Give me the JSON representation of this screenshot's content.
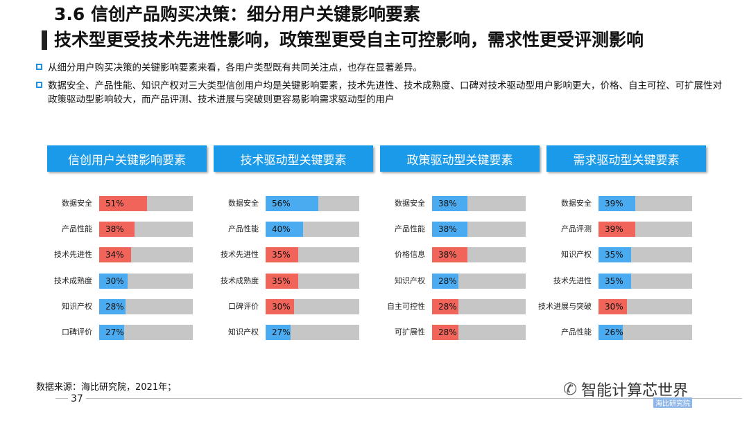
{
  "title": {
    "line1": "3.6 信创产品购买决策：细分用户关键影响要素",
    "line2": "技术型更受技术先进性影响，政策型更受自主可控影响，需求性更受评测影响"
  },
  "bullets": [
    "从细分用户购买决策的关键影响要素来看，各用户类型既有共同关注点，也存在显著差异。",
    "数据安全、产品性能、知识产权对三大类型信创用户均是关键影响要素，技术先进性、技术成熟度、口碑对技术驱动型用户影响更大，价格、自主可控、可扩展性对政策驱动型影响较大，而产品评测、技术进展与突破则更容易影响需求驱动型的用户"
  ],
  "colors": {
    "header": "#1a9ae8",
    "red": "#f0645a",
    "blue": "#4aabf0",
    "track": "#c6c6c6"
  },
  "chart_data": [
    {
      "type": "bar",
      "title": "信创用户关键影响要素",
      "categories": [
        "数据安全",
        "产品性能",
        "技术先进性",
        "技术成熟度",
        "知识产权",
        "口碑评价"
      ],
      "values": [
        51,
        38,
        34,
        30,
        28,
        27
      ],
      "labels": [
        "51%",
        "38%",
        "34%",
        "30%",
        "28%",
        "27%"
      ],
      "colors": [
        "red",
        "red",
        "red",
        "blue",
        "blue",
        "blue"
      ],
      "xlim": [
        0,
        100
      ]
    },
    {
      "type": "bar",
      "title": "技术驱动型关键要素",
      "categories": [
        "数据安全",
        "产品性能",
        "技术先进性",
        "技术成熟度",
        "口碑评价",
        "知识产权"
      ],
      "values": [
        56,
        40,
        35,
        35,
        30,
        27
      ],
      "labels": [
        "56%",
        "40%",
        "35%",
        "35%",
        "30%",
        "27%"
      ],
      "colors": [
        "blue",
        "blue",
        "red",
        "red",
        "red",
        "blue"
      ],
      "xlim": [
        0,
        100
      ]
    },
    {
      "type": "bar",
      "title": "政策驱动型关键要素",
      "categories": [
        "数据安全",
        "产品性能",
        "价格信息",
        "知识产权",
        "自主可控性",
        "可扩展性"
      ],
      "values": [
        38,
        38,
        38,
        28,
        28,
        28
      ],
      "labels": [
        "38%",
        "38%",
        "38%",
        "28%",
        "28%",
        "28%"
      ],
      "colors": [
        "blue",
        "blue",
        "red",
        "blue",
        "red",
        "red"
      ],
      "xlim": [
        0,
        100
      ]
    },
    {
      "type": "bar",
      "title": "需求驱动型关键要素",
      "categories": [
        "数据安全",
        "产品评测",
        "知识产权",
        "技术先进性",
        "技术进展与突破",
        "产品性能"
      ],
      "values": [
        39,
        39,
        35,
        35,
        30,
        26
      ],
      "labels": [
        "39%",
        "39%",
        "35%",
        "35%",
        "30%",
        "26%"
      ],
      "colors": [
        "blue",
        "red",
        "blue",
        "blue",
        "red",
        "blue"
      ],
      "xlim": [
        0,
        100
      ]
    }
  ],
  "footer": {
    "source": "数据来源：海比研究院，2021年；",
    "page": "37",
    "brand": "智能计算芯世界",
    "watermark": "海比研究院"
  }
}
